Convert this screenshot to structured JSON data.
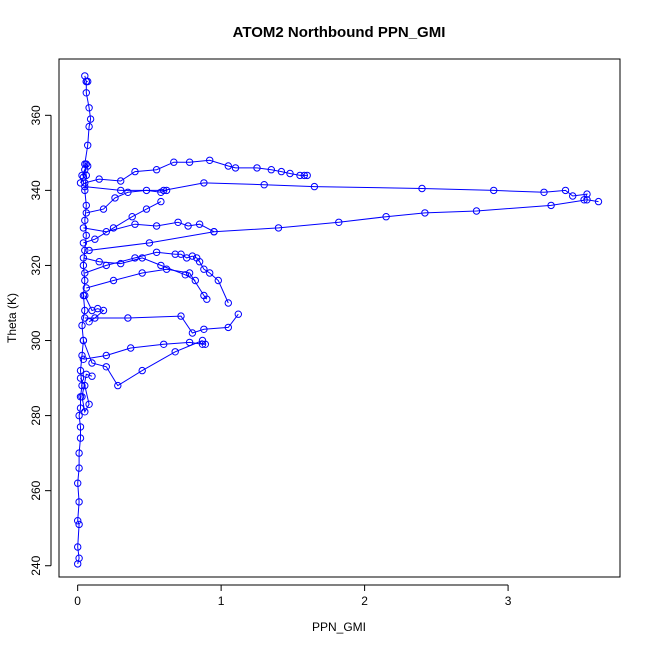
{
  "chart_data": {
    "type": "line",
    "title": "ATOM2 Northbound PPN_GMI",
    "xlabel": "PPN_GMI",
    "ylabel": "Theta (K)",
    "xlim": [
      -0.13,
      3.78
    ],
    "ylim": [
      237,
      375
    ],
    "x_ticks": [
      0,
      1,
      2,
      3
    ],
    "y_ticks": [
      240,
      260,
      280,
      300,
      320,
      340,
      360
    ],
    "grid": false,
    "legend": "none",
    "markers": "open-circle",
    "line_color": "#0000ff",
    "series": [
      {
        "values": [
          [
            0.0,
            240.5
          ],
          [
            0.01,
            242
          ],
          [
            0.0,
            245
          ],
          [
            0.01,
            251
          ],
          [
            0.0,
            252
          ],
          [
            0.01,
            257
          ],
          [
            0.0,
            262
          ],
          [
            0.01,
            266
          ],
          [
            0.01,
            270
          ],
          [
            0.02,
            274
          ],
          [
            0.02,
            277
          ],
          [
            0.01,
            280
          ],
          [
            0.02,
            282
          ],
          [
            0.02,
            285
          ],
          [
            0.03,
            288
          ],
          [
            0.02,
            292
          ],
          [
            0.03,
            296
          ],
          [
            0.04,
            300
          ],
          [
            0.03,
            304
          ],
          [
            0.05,
            308
          ],
          [
            0.04,
            312
          ],
          [
            0.05,
            316
          ],
          [
            0.04,
            320
          ],
          [
            0.05,
            324
          ],
          [
            0.06,
            328
          ],
          [
            0.05,
            332
          ],
          [
            0.06,
            336
          ],
          [
            0.05,
            340
          ],
          [
            0.06,
            344
          ],
          [
            0.05,
            347
          ],
          [
            0.07,
            352
          ],
          [
            0.08,
            357
          ],
          [
            0.09,
            359
          ],
          [
            0.08,
            362
          ],
          [
            0.06,
            366
          ],
          [
            0.06,
            369
          ],
          [
            0.05,
            370.5
          ],
          [
            0.06,
            369
          ],
          [
            0.07,
            369
          ]
        ]
      },
      {
        "values": [
          [
            0.05,
            342
          ],
          [
            0.15,
            343
          ],
          [
            0.3,
            342.5
          ],
          [
            0.4,
            345
          ],
          [
            0.55,
            345.5
          ],
          [
            0.67,
            347.5
          ],
          [
            0.78,
            347.5
          ],
          [
            0.92,
            348
          ],
          [
            1.05,
            346.5
          ],
          [
            1.1,
            346
          ],
          [
            1.25,
            346
          ],
          [
            1.35,
            345.5
          ],
          [
            1.42,
            345
          ],
          [
            1.48,
            344.5
          ],
          [
            1.55,
            344
          ],
          [
            1.58,
            344
          ],
          [
            1.6,
            344
          ]
        ]
      },
      {
        "values": [
          [
            0.05,
            341
          ],
          [
            0.3,
            340
          ],
          [
            0.6,
            340
          ],
          [
            0.88,
            342
          ],
          [
            1.3,
            341.5
          ],
          [
            1.65,
            341
          ],
          [
            2.4,
            340.5
          ],
          [
            2.9,
            340
          ],
          [
            3.25,
            339.5
          ],
          [
            3.4,
            340
          ],
          [
            3.45,
            338.5
          ],
          [
            3.55,
            339
          ],
          [
            3.53,
            337.5
          ]
        ]
      },
      {
        "values": [
          [
            0.08,
            324
          ],
          [
            0.5,
            326
          ],
          [
            0.95,
            329
          ],
          [
            1.4,
            330
          ],
          [
            1.82,
            331.5
          ],
          [
            2.15,
            333
          ],
          [
            2.42,
            334
          ],
          [
            2.78,
            334.5
          ],
          [
            3.3,
            336
          ],
          [
            3.55,
            337.5
          ],
          [
            3.63,
            337
          ]
        ]
      },
      {
        "values": [
          [
            0.04,
            330
          ],
          [
            0.2,
            329
          ],
          [
            0.4,
            331
          ],
          [
            0.55,
            330.5
          ],
          [
            0.7,
            331.5
          ],
          [
            0.77,
            330.5
          ],
          [
            0.85,
            331
          ],
          [
            0.95,
            329
          ]
        ]
      },
      {
        "values": [
          [
            0.05,
            318
          ],
          [
            0.2,
            320
          ],
          [
            0.4,
            322
          ],
          [
            0.55,
            323.5
          ],
          [
            0.68,
            323
          ],
          [
            0.72,
            323
          ],
          [
            0.76,
            322
          ],
          [
            0.8,
            322.5
          ],
          [
            0.83,
            322
          ],
          [
            0.85,
            321
          ],
          [
            0.88,
            319
          ],
          [
            0.92,
            318
          ],
          [
            0.98,
            316
          ],
          [
            1.05,
            310
          ]
        ]
      },
      {
        "values": [
          [
            0.05,
            306
          ],
          [
            0.35,
            306
          ],
          [
            0.72,
            306.5
          ],
          [
            0.8,
            302
          ],
          [
            0.88,
            303
          ],
          [
            1.05,
            303.5
          ],
          [
            1.12,
            307
          ]
        ]
      },
      {
        "values": [
          [
            0.04,
            295
          ],
          [
            0.2,
            296
          ],
          [
            0.37,
            298
          ],
          [
            0.6,
            299
          ],
          [
            0.78,
            299.5
          ],
          [
            0.87,
            299
          ],
          [
            0.89,
            299
          ]
        ]
      },
      {
        "values": [
          [
            0.04,
            300
          ],
          [
            0.1,
            294
          ],
          [
            0.2,
            293
          ],
          [
            0.28,
            288
          ],
          [
            0.45,
            292
          ],
          [
            0.68,
            297
          ],
          [
            0.87,
            300
          ]
        ]
      },
      {
        "values": [
          [
            0.06,
            314
          ],
          [
            0.25,
            316
          ],
          [
            0.45,
            318
          ],
          [
            0.62,
            319
          ],
          [
            0.78,
            318
          ],
          [
            0.88,
            312
          ],
          [
            0.9,
            311
          ]
        ]
      },
      {
        "values": [
          [
            0.06,
            334
          ],
          [
            0.18,
            335
          ],
          [
            0.26,
            338
          ],
          [
            0.35,
            339.5
          ],
          [
            0.48,
            340
          ],
          [
            0.58,
            339.5
          ],
          [
            0.62,
            340
          ]
        ]
      },
      {
        "values": [
          [
            0.04,
            326
          ],
          [
            0.12,
            327
          ],
          [
            0.25,
            330
          ],
          [
            0.38,
            333
          ],
          [
            0.48,
            335
          ],
          [
            0.58,
            337
          ]
        ]
      },
      {
        "values": [
          [
            0.05,
            312
          ],
          [
            0.1,
            308
          ],
          [
            0.14,
            308.5
          ],
          [
            0.18,
            308
          ],
          [
            0.12,
            306
          ],
          [
            0.08,
            305
          ]
        ]
      },
      {
        "values": [
          [
            0.04,
            322
          ],
          [
            0.15,
            321
          ],
          [
            0.3,
            320.5
          ],
          [
            0.45,
            322
          ],
          [
            0.58,
            320
          ],
          [
            0.75,
            317.5
          ],
          [
            0.82,
            316
          ]
        ]
      },
      {
        "values": [
          [
            0.02,
            290
          ],
          [
            0.05,
            288
          ],
          [
            0.08,
            283
          ],
          [
            0.05,
            281
          ],
          [
            0.03,
            285
          ],
          [
            0.06,
            291
          ],
          [
            0.1,
            290.5
          ]
        ]
      },
      {
        "values": [
          [
            0.03,
            344
          ],
          [
            0.05,
            345.5
          ],
          [
            0.07,
            346.5
          ],
          [
            0.06,
            347
          ],
          [
            0.04,
            343.5
          ],
          [
            0.02,
            342
          ]
        ]
      }
    ]
  }
}
